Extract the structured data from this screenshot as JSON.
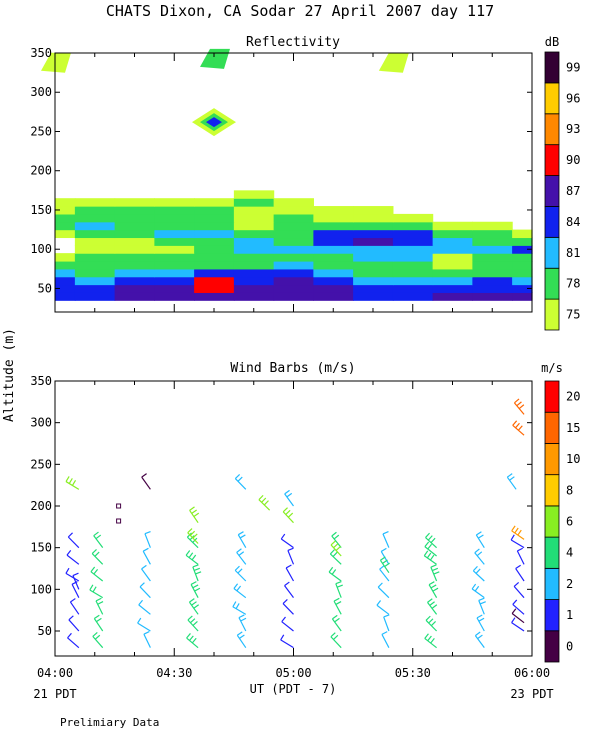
{
  "title": "CHATS Dixon, CA  Sodar  27 April 2007  day 117",
  "footer_note": "Prelimiary Data",
  "shared_x": {
    "label": "UT  (PDT - 7)",
    "ticks": [
      "04:00",
      "04:30",
      "05:00",
      "05:30",
      "06:00"
    ],
    "left_note": "21 PDT",
    "right_note": "23 PDT"
  },
  "shared_ylabel": "Altitude (m)",
  "chart_data": [
    {
      "type": "heatmap",
      "title": "Reflectivity",
      "xlim": [
        "04:00",
        "06:00"
      ],
      "ylim": [
        20,
        350
      ],
      "yticks": [
        50,
        100,
        150,
        200,
        250,
        300,
        350
      ],
      "colorbar": {
        "unit": "dB",
        "labels": [
          "75",
          "78",
          "81",
          "84",
          "87",
          "90",
          "93",
          "96",
          "99"
        ],
        "colors": [
          "#ccff33",
          "#33dd55",
          "#22bbff",
          "#1122ee",
          "#4411aa",
          "#ff0000",
          "#ff8800",
          "#ffcc00",
          "#330033"
        ]
      },
      "x_times": [
        "04:00",
        "04:10",
        "04:20",
        "04:30",
        "04:40",
        "04:50",
        "05:00",
        "05:10",
        "05:20",
        "05:30",
        "05:40",
        "05:50",
        "06:00"
      ],
      "altitudes_m": [
        40,
        50,
        60,
        70,
        80,
        90,
        100,
        110,
        120,
        130,
        140,
        150,
        160,
        170
      ],
      "values_db": [
        [
          84,
          84,
          87,
          87,
          87,
          87,
          87,
          87,
          84,
          84,
          87,
          87,
          87
        ],
        [
          84,
          84,
          87,
          87,
          90,
          87,
          87,
          87,
          84,
          84,
          84,
          84,
          84
        ],
        [
          84,
          81,
          84,
          84,
          90,
          84,
          87,
          84,
          81,
          81,
          81,
          84,
          81
        ],
        [
          81,
          78,
          81,
          81,
          84,
          84,
          84,
          81,
          78,
          78,
          78,
          78,
          78
        ],
        [
          78,
          78,
          78,
          78,
          78,
          78,
          81,
          78,
          78,
          78,
          75,
          78,
          78
        ],
        [
          75,
          78,
          78,
          78,
          78,
          78,
          78,
          78,
          81,
          81,
          75,
          78,
          78
        ],
        [
          0,
          75,
          75,
          75,
          78,
          81,
          81,
          81,
          81,
          81,
          81,
          81,
          84
        ],
        [
          0,
          75,
          75,
          78,
          78,
          81,
          78,
          84,
          87,
          84,
          81,
          78,
          78
        ],
        [
          75,
          78,
          78,
          81,
          81,
          78,
          78,
          84,
          84,
          84,
          78,
          78,
          75
        ],
        [
          78,
          81,
          78,
          78,
          78,
          75,
          78,
          78,
          78,
          78,
          75,
          75,
          0
        ],
        [
          78,
          78,
          78,
          78,
          78,
          75,
          78,
          75,
          75,
          75,
          0,
          0,
          0
        ],
        [
          75,
          78,
          78,
          78,
          78,
          75,
          75,
          75,
          75,
          0,
          0,
          0,
          0
        ],
        [
          75,
          75,
          75,
          75,
          75,
          78,
          75,
          0,
          0,
          0,
          0,
          0,
          0
        ],
        [
          0,
          0,
          0,
          0,
          0,
          75,
          0,
          0,
          0,
          0,
          0,
          0,
          0
        ]
      ],
      "isolated_echoes": [
        {
          "time": "04:00",
          "alt": 335,
          "db": 75
        },
        {
          "time": "04:40",
          "alt": 340,
          "db": 78
        },
        {
          "time": "05:25",
          "alt": 335,
          "db": 75
        },
        {
          "time": "04:40",
          "alt": 262,
          "db": 84
        }
      ]
    },
    {
      "type": "scatter",
      "title": "Wind Barbs (m/s)",
      "xlim": [
        "04:00",
        "06:00"
      ],
      "ylim": [
        20,
        350
      ],
      "yticks": [
        50,
        100,
        150,
        200,
        250,
        300,
        350
      ],
      "colorbar": {
        "unit": "m/s",
        "labels": [
          "0",
          "1",
          "2",
          "4",
          "6",
          "8",
          "10",
          "15",
          "20"
        ],
        "colors": [
          "#440044",
          "#2222ff",
          "#22bbff",
          "#22dd77",
          "#88ee22",
          "#ffcc00",
          "#ff9900",
          "#ff6600",
          "#ff0000"
        ]
      },
      "barb_times": [
        "04:06",
        "04:12",
        "04:24",
        "04:36",
        "04:48",
        "05:00",
        "05:12",
        "05:24",
        "05:36",
        "05:48",
        "05:58"
      ],
      "barb_altitudes_m": [
        30,
        50,
        70,
        90,
        110,
        130,
        150
      ],
      "barbs": [
        {
          "time": "04:06",
          "alt": 220,
          "speed": 7
        },
        {
          "time": "04:24",
          "alt": 220,
          "speed": 0.5
        },
        {
          "time": "04:48",
          "alt": 220,
          "speed": 3
        },
        {
          "time": "04:54",
          "alt": 195,
          "speed": 6
        },
        {
          "time": "05:00",
          "alt": 200,
          "speed": 3
        },
        {
          "time": "05:00",
          "alt": 180,
          "speed": 6
        },
        {
          "time": "05:56",
          "alt": 220,
          "speed": 3
        },
        {
          "time": "05:58",
          "alt": 310,
          "speed": 15
        },
        {
          "time": "05:58",
          "alt": 285,
          "speed": 15
        },
        {
          "time": "05:58",
          "alt": 160,
          "speed": 12
        },
        {
          "time": "05:58",
          "alt": 60,
          "speed": 0.5
        },
        {
          "time": "04:06",
          "alt": 100,
          "speed": 1
        },
        {
          "time": "04:36",
          "alt": 180,
          "speed": 6
        },
        {
          "time": "04:36",
          "alt": 155,
          "speed": 7
        },
        {
          "time": "05:12",
          "alt": 140,
          "speed": 7
        },
        {
          "time": "05:24",
          "alt": 120,
          "speed": 5
        },
        {
          "time": "05:36",
          "alt": 140,
          "speed": 4
        }
      ],
      "calm_markers": [
        {
          "time": "04:16",
          "alt": 200
        },
        {
          "time": "04:16",
          "alt": 182
        }
      ]
    }
  ]
}
